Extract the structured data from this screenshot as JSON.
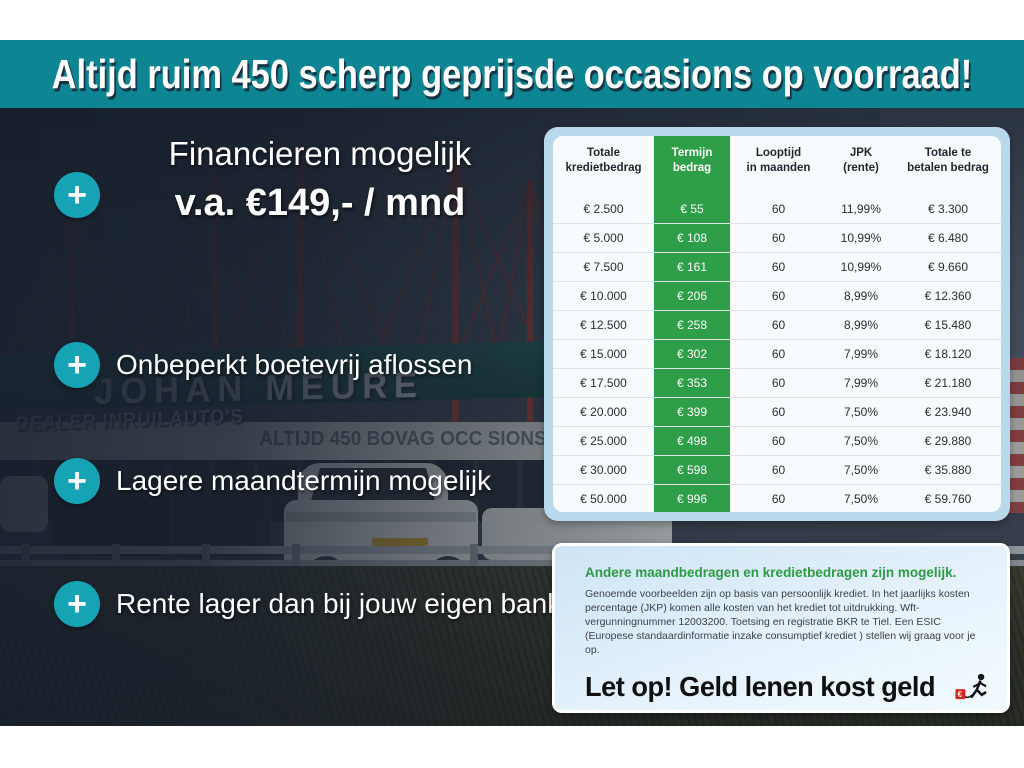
{
  "banner": {
    "text": "Altijd ruim 450 scherp geprijsde occasions op voorraad!"
  },
  "usps": [
    {
      "line1": "Financieren mogelijk",
      "line2": "v.a. €149,- / mnd"
    },
    {
      "label": "Onbeperkt boetevrij aflossen"
    },
    {
      "label": "Lagere maandtermijn mogelijk"
    },
    {
      "label": "Rente lager dan bij jouw eigen bank"
    }
  ],
  "plus_symbol": "+",
  "photo": {
    "signage_main": "JOHAN MEURE",
    "signage_dealer": "DEALER INRUILAUTO'S",
    "signage_sub": "ALTIJD 450  BOVAG  OCC SIONS"
  },
  "table": {
    "headers": [
      [
        "Totale",
        "kredietbedrag"
      ],
      [
        "Termijn",
        "bedrag"
      ],
      [
        "Looptijd",
        "in maanden"
      ],
      [
        "JPK",
        "(rente)"
      ],
      [
        "Totale te",
        "betalen bedrag"
      ]
    ],
    "rows": [
      [
        "€ 2.500",
        "€ 55",
        "60",
        "11,99%",
        "€ 3.300"
      ],
      [
        "€ 5.000",
        "€ 108",
        "60",
        "10,99%",
        "€ 6.480"
      ],
      [
        "€ 7.500",
        "€ 161",
        "60",
        "10,99%",
        "€ 9.660"
      ],
      [
        "€ 10.000",
        "€ 206",
        "60",
        "8,99%",
        "€ 12.360"
      ],
      [
        "€ 12.500",
        "€ 258",
        "60",
        "8,99%",
        "€ 15.480"
      ],
      [
        "€ 15.000",
        "€ 302",
        "60",
        "7,99%",
        "€ 18.120"
      ],
      [
        "€ 17.500",
        "€ 353",
        "60",
        "7,99%",
        "€ 21.180"
      ],
      [
        "€ 20.000",
        "€ 399",
        "60",
        "7,50%",
        "€ 23.940"
      ],
      [
        "€ 25.000",
        "€ 498",
        "60",
        "7,50%",
        "€ 29.880"
      ],
      [
        "€ 30.000",
        "€ 598",
        "60",
        "7,50%",
        "€ 35.880"
      ],
      [
        "€ 50.000",
        "€ 996",
        "60",
        "7,50%",
        "€ 59.760"
      ]
    ]
  },
  "disclaimer": {
    "heading": "Andere maandbedragen en kredietbedragen zijn mogelijk.",
    "body": "Genoemde voorbeelden zijn op basis van persoonlijk krediet. In het jaarlijks kosten percentage (JKP) komen alle kosten van het krediet tot uitdrukking. Wft-vergunningnummer 12003200. Toetsing en registratie BKR te Tiel. Een ESIC (Europese standaardinformatie inzake consumptief krediet ) stellen wij graag voor je op.",
    "warning": "Let op! Geld lenen kost geld",
    "warning_icon_symbol": "€"
  },
  "colors": {
    "banner_teal": "#0e8593",
    "plus_circle_teal": "#16a3b3",
    "table_green": "#2f9e48",
    "card_frame_blue": "#b9d8ec",
    "heading_green": "#2e9b44",
    "warning_red": "#d8251c"
  }
}
